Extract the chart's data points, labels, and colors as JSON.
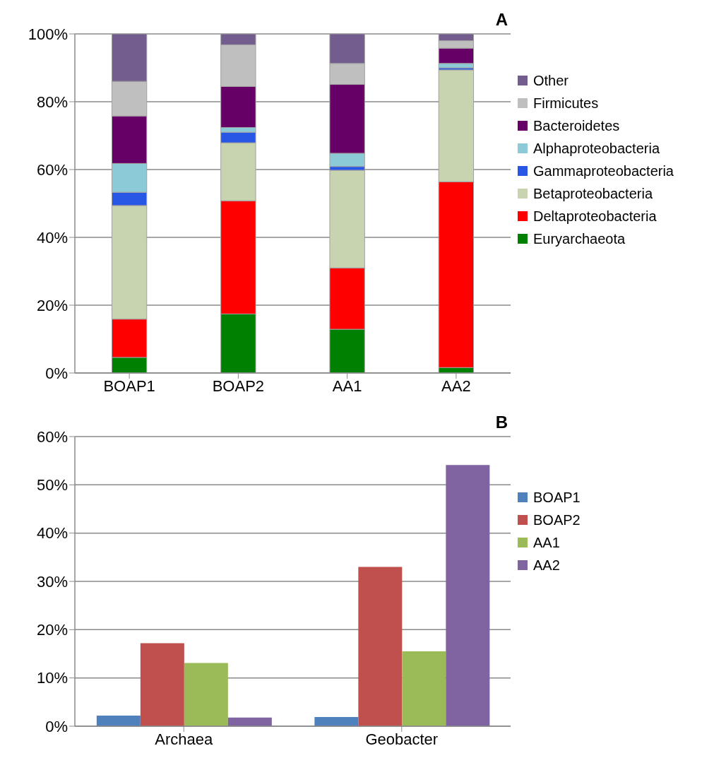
{
  "chart_data": [
    {
      "type": "bar",
      "title": "A",
      "stacked": true,
      "categories": [
        "BOAP1",
        "BOAP2",
        "AA1",
        "AA2"
      ],
      "series": [
        {
          "name": "Euryarchaeota",
          "color": "#008000",
          "values": [
            4.6,
            17.4,
            12.9,
            1.6
          ]
        },
        {
          "name": "Deltaproteobacteria",
          "color": "#ff0000",
          "values": [
            11.3,
            33.4,
            18.1,
            54.8
          ]
        },
        {
          "name": "Betaproteobacteria",
          "color": "#c8d4b0",
          "values": [
            33.5,
            17.1,
            28.8,
            33.0
          ]
        },
        {
          "name": "Gammaproteobacteria",
          "color": "#2857e6",
          "values": [
            3.9,
            3.1,
            1.1,
            0.6
          ]
        },
        {
          "name": "Alphaproteobacteria",
          "color": "#8ccad8",
          "values": [
            8.5,
            1.4,
            3.9,
            1.3
          ]
        },
        {
          "name": "Bacteroidetes",
          "color": "#660066",
          "values": [
            14.0,
            12.1,
            20.3,
            4.5
          ]
        },
        {
          "name": "Firmicutes",
          "color": "#bfbfbf",
          "values": [
            10.2,
            12.3,
            6.2,
            2.2
          ]
        },
        {
          "name": "Other",
          "color": "#735c8e",
          "values": [
            14.0,
            3.2,
            8.7,
            2.0
          ]
        }
      ],
      "ylim": [
        0,
        100
      ],
      "yticks": [
        {
          "value": 0,
          "label": "0%"
        },
        {
          "value": 20,
          "label": "20%"
        },
        {
          "value": 40,
          "label": "40%"
        },
        {
          "value": 60,
          "label": "60%"
        },
        {
          "value": 80,
          "label": "80%"
        },
        {
          "value": 100,
          "label": "100%"
        }
      ],
      "grid": "y",
      "legend": "right"
    },
    {
      "type": "bar",
      "title": "B",
      "categories": [
        "Archaea",
        "Geobacter"
      ],
      "series": [
        {
          "name": "BOAP1",
          "color": "#4f81bd",
          "values": [
            2.2,
            1.9
          ]
        },
        {
          "name": "BOAP2",
          "color": "#c0504d",
          "values": [
            17.2,
            33.0
          ]
        },
        {
          "name": "AA1",
          "color": "#9bbb59",
          "values": [
            13.1,
            15.5
          ]
        },
        {
          "name": "AA2",
          "color": "#8064a2",
          "values": [
            1.8,
            54.1
          ]
        }
      ],
      "ylim": [
        0,
        60
      ],
      "yticks": [
        {
          "value": 0,
          "label": "0%"
        },
        {
          "value": 10,
          "label": "10%"
        },
        {
          "value": 20,
          "label": "20%"
        },
        {
          "value": 30,
          "label": "30%"
        },
        {
          "value": 40,
          "label": "40%"
        },
        {
          "value": 50,
          "label": "50%"
        },
        {
          "value": 60,
          "label": "60%"
        }
      ],
      "grid": "y",
      "legend": "right"
    }
  ]
}
